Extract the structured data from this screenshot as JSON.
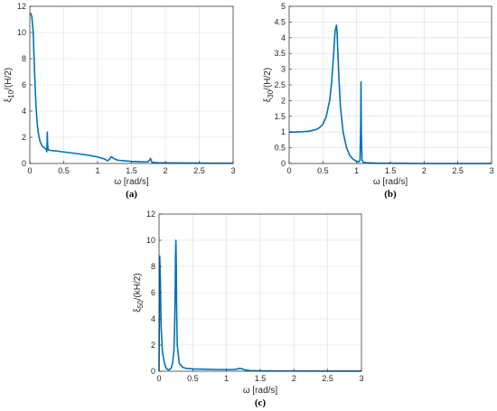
{
  "color": "#0072BD",
  "chart_data": [
    {
      "type": "line",
      "caption": "(a)",
      "xlabel": "ω  [rad/s]",
      "ylabel_main": "ξ",
      "ylabel_sub": "10",
      "ylabel_rest": "/(H/2)",
      "xlim": [
        0,
        3
      ],
      "ylim": [
        0,
        12
      ],
      "xticks": [
        0,
        0.5,
        1,
        1.5,
        2,
        2.5,
        3
      ],
      "xtick_labels": [
        "0",
        "0.5",
        "1",
        "1.5",
        "2",
        "2.5",
        "3"
      ],
      "yticks": [
        0,
        2,
        4,
        6,
        8,
        10,
        12
      ],
      "ytick_labels": [
        "0",
        "2",
        "4",
        "6",
        "8",
        "10",
        "12"
      ],
      "grid": true,
      "series": [
        {
          "x": [
            0.01,
            0.03,
            0.05,
            0.07,
            0.09,
            0.11,
            0.13,
            0.15,
            0.18,
            0.21,
            0.24,
            0.25,
            0.255,
            0.258,
            0.262,
            0.27,
            0.3,
            0.4,
            0.5,
            0.6,
            0.7,
            0.8,
            0.9,
            1.0,
            1.1,
            1.15,
            1.18,
            1.2,
            1.22,
            1.25,
            1.3,
            1.4,
            1.5,
            1.6,
            1.7,
            1.75,
            1.77,
            1.78,
            1.79,
            1.8,
            1.82,
            1.9,
            2.0,
            2.2,
            2.5,
            2.8,
            3.0
          ],
          "y": [
            11.5,
            11.2,
            10.0,
            7.0,
            4.5,
            3.0,
            2.2,
            1.7,
            1.35,
            1.2,
            1.1,
            0.9,
            1.6,
            2.4,
            1.5,
            1.05,
            1.0,
            0.95,
            0.88,
            0.82,
            0.75,
            0.68,
            0.6,
            0.5,
            0.35,
            0.2,
            0.35,
            0.52,
            0.45,
            0.35,
            0.25,
            0.2,
            0.16,
            0.14,
            0.12,
            0.15,
            0.28,
            0.4,
            0.25,
            0.1,
            0.08,
            0.06,
            0.05,
            0.04,
            0.03,
            0.02,
            0.02
          ]
        }
      ]
    },
    {
      "type": "line",
      "caption": "(b)",
      "xlabel": "ω  [rad/s]",
      "ylabel_main": "ξ",
      "ylabel_sub": "30",
      "ylabel_rest": "/(H/2)",
      "xlim": [
        0,
        3
      ],
      "ylim": [
        0,
        5
      ],
      "xticks": [
        0,
        0.5,
        1,
        1.5,
        2,
        2.5,
        3
      ],
      "xtick_labels": [
        "0",
        "0.5",
        "1",
        "1.5",
        "2",
        "2.5",
        "3"
      ],
      "yticks": [
        0,
        0.5,
        1,
        1.5,
        2,
        2.5,
        3,
        3.5,
        4,
        4.5,
        5
      ],
      "ytick_labels": [
        "0",
        "0.5",
        "1",
        "1.5",
        "2",
        "2.5",
        "3",
        "3.5",
        "4",
        "4.5",
        "5"
      ],
      "grid": true,
      "series": [
        {
          "x": [
            0.0,
            0.1,
            0.2,
            0.3,
            0.4,
            0.45,
            0.5,
            0.55,
            0.6,
            0.63,
            0.66,
            0.68,
            0.7,
            0.71,
            0.72,
            0.74,
            0.76,
            0.8,
            0.85,
            0.9,
            0.95,
            1.0,
            1.03,
            1.05,
            1.06,
            1.065,
            1.07,
            1.08,
            1.1,
            1.15,
            1.2,
            1.3,
            1.5,
            2.0,
            2.5,
            3.0
          ],
          "y": [
            1.0,
            1.0,
            1.01,
            1.03,
            1.08,
            1.14,
            1.25,
            1.5,
            2.0,
            2.6,
            3.5,
            4.2,
            4.4,
            4.2,
            3.6,
            2.6,
            1.8,
            1.0,
            0.5,
            0.25,
            0.13,
            0.07,
            0.05,
            0.1,
            1.2,
            2.6,
            1.0,
            0.1,
            0.04,
            0.02,
            0.02,
            0.01,
            0.01,
            0.0,
            0.0,
            0.0
          ]
        }
      ]
    },
    {
      "type": "line",
      "caption": "(c)",
      "xlabel": "ω  [rad/s]",
      "ylabel_main": "ξ",
      "ylabel_sub": "50",
      "ylabel_rest": "/(kH/2)",
      "xlim": [
        0,
        3
      ],
      "ylim": [
        0,
        12
      ],
      "xticks": [
        0,
        0.5,
        1,
        1.5,
        2,
        2.5,
        3
      ],
      "xtick_labels": [
        "0",
        "0.5",
        "1",
        "1.5",
        "2",
        "2.5",
        "3"
      ],
      "yticks": [
        0,
        2,
        4,
        6,
        8,
        10,
        12
      ],
      "ytick_labels": [
        "0",
        "2",
        "4",
        "6",
        "8",
        "10",
        "12"
      ],
      "grid": true,
      "series": [
        {
          "x": [
            0.0,
            0.005,
            0.01,
            0.02,
            0.03,
            0.05,
            0.08,
            0.1,
            0.12,
            0.15,
            0.18,
            0.2,
            0.22,
            0.23,
            0.24,
            0.245,
            0.25,
            0.255,
            0.26,
            0.27,
            0.3,
            0.35,
            0.4,
            0.5,
            0.7,
            0.9,
            1.1,
            1.15,
            1.2,
            1.23,
            1.27,
            1.35,
            1.5,
            1.8,
            2.0,
            2.5,
            3.0
          ],
          "y": [
            0.0,
            5.0,
            8.8,
            7.0,
            3.5,
            1.5,
            0.6,
            0.3,
            0.15,
            0.1,
            0.25,
            0.6,
            1.5,
            3.0,
            6.5,
            9.0,
            10.0,
            8.5,
            5.0,
            2.0,
            0.6,
            0.3,
            0.22,
            0.18,
            0.15,
            0.13,
            0.13,
            0.16,
            0.22,
            0.18,
            0.1,
            0.05,
            0.03,
            0.02,
            0.02,
            0.01,
            0.01
          ]
        }
      ]
    }
  ]
}
